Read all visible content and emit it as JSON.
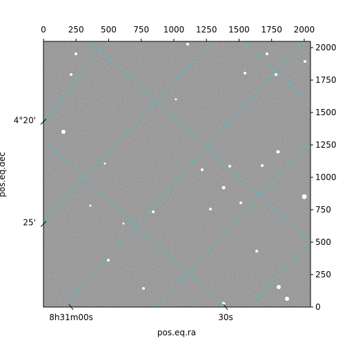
{
  "chart_data": {
    "type": "image",
    "xlabel": "pos.eq.ra",
    "ylabel": "pos.eq.dec",
    "xlim": [
      0,
      2048
    ],
    "ylim": [
      0,
      2048
    ],
    "xticks": [
      0,
      250,
      500,
      750,
      1000,
      1250,
      1500,
      1750,
      2000
    ],
    "yticks": [
      0,
      250,
      500,
      750,
      1000,
      1250,
      1500,
      1750,
      2000
    ],
    "ra_ticks": [
      {
        "value": 212,
        "label": "8h31m00s"
      },
      {
        "value": 1397,
        "label": "30s"
      }
    ],
    "dec_ticks": [
      {
        "value": 1429,
        "label": "4°20'"
      },
      {
        "value": 640,
        "label": "25'"
      }
    ],
    "grid_color": "#33cccc"
  }
}
